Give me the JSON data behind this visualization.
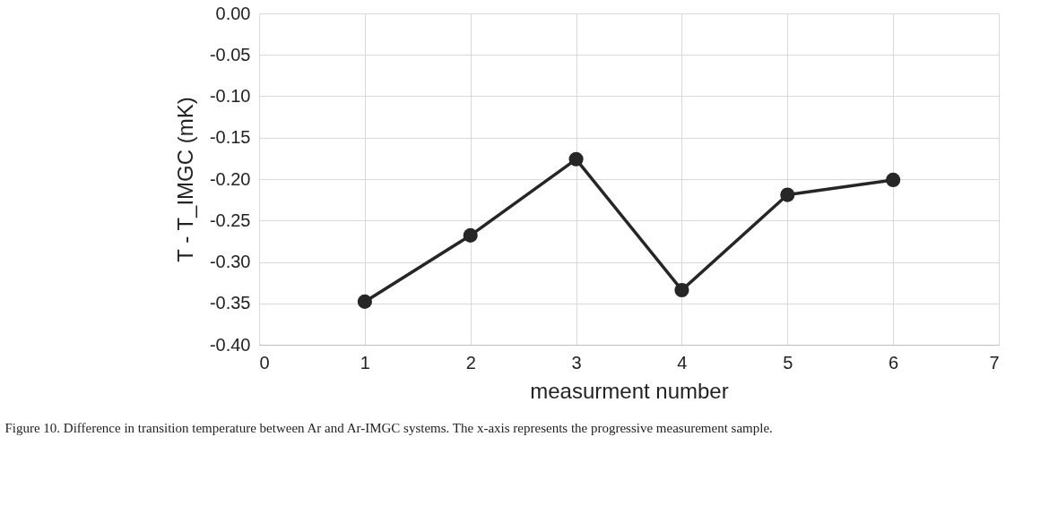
{
  "chart_data": {
    "type": "line",
    "xlabel": "measurment number",
    "ylabel": "T - T_IMGC (mK)",
    "x": [
      1,
      2,
      3,
      4,
      5,
      6
    ],
    "series": [
      {
        "color": "#262626",
        "values": [
          -0.348,
          -0.268,
          -0.176,
          -0.334,
          -0.219,
          -0.201
        ]
      }
    ],
    "xlim": [
      0,
      7
    ],
    "xticks": [
      0,
      1,
      2,
      3,
      4,
      5,
      6,
      7
    ],
    "ylim": [
      -0.4,
      0.0
    ],
    "yticks": [
      {
        "value": -0.4,
        "label": "-0.40"
      },
      {
        "value": -0.35,
        "label": "-0.35"
      },
      {
        "value": -0.3,
        "label": "-0.30"
      },
      {
        "value": -0.25,
        "label": "-0.25"
      },
      {
        "value": -0.2,
        "label": "-0.20"
      },
      {
        "value": -0.15,
        "label": "-0.15"
      },
      {
        "value": -0.1,
        "label": "-0.10"
      },
      {
        "value": -0.05,
        "label": "-0.05"
      },
      {
        "value": 0.0,
        "label": "0.00"
      }
    ],
    "grid": true,
    "marker": "circle",
    "line_style": "solid",
    "annotations": [
      "Figure 10. Difference in transition temperature between Ar and Ar-IMGC systems. The x-axis represents the progressive measurement sample."
    ]
  }
}
